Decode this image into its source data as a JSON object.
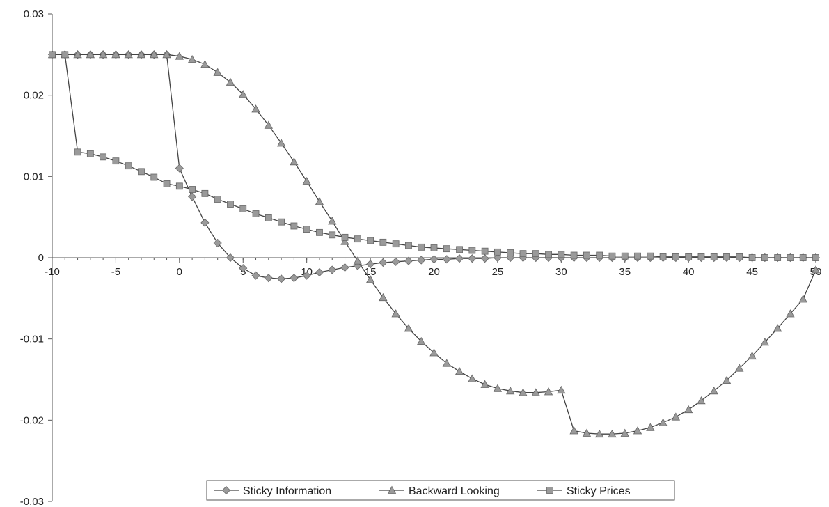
{
  "chart_data": {
    "type": "line",
    "title": "",
    "xlabel": "",
    "ylabel": "",
    "xlim": [
      -10,
      50
    ],
    "ylim": [
      -0.03,
      0.03
    ],
    "x_ticks": [
      -10,
      -5,
      0,
      5,
      10,
      15,
      20,
      25,
      30,
      35,
      40,
      45,
      50
    ],
    "x_tick_labels": [
      "-10",
      "-5",
      "0",
      "5",
      "10",
      "15",
      "20",
      "25",
      "30",
      "35",
      "40",
      "45",
      "50"
    ],
    "y_ticks": [
      0.03,
      0.02,
      0.01,
      0,
      -0.01,
      -0.02,
      -0.03
    ],
    "y_tick_labels": [
      "0.03",
      "0.02",
      "0.01",
      "0",
      "-0.01",
      "-0.02",
      "-0.03"
    ],
    "grid": false,
    "legend_position": "bottom-center",
    "colors": {
      "line": "#444444",
      "marker": "#9a9a9a",
      "axis": "#555555"
    },
    "series": [
      {
        "name": "Sticky Information",
        "marker": "diamond",
        "x": [
          -10,
          -9,
          -8,
          -7,
          -6,
          -5,
          -4,
          -3,
          -2,
          -1,
          0,
          1,
          2,
          3,
          4,
          5,
          6,
          7,
          8,
          9,
          10,
          11,
          12,
          13,
          14,
          15,
          16,
          17,
          18,
          19,
          20,
          21,
          22,
          23,
          24,
          25,
          26,
          27,
          28,
          29,
          30,
          31,
          32,
          33,
          34,
          35,
          36,
          37,
          38,
          39,
          40,
          41,
          42,
          43,
          44,
          45,
          46,
          47,
          48,
          49,
          50
        ],
        "y": [
          0.025,
          0.025,
          0.025,
          0.025,
          0.025,
          0.025,
          0.025,
          0.025,
          0.025,
          0.025,
          0.011,
          0.0075,
          0.0043,
          0.0018,
          0,
          -0.0013,
          -0.0022,
          -0.0025,
          -0.0026,
          -0.0025,
          -0.0022,
          -0.0018,
          -0.0015,
          -0.0012,
          -0.001,
          -0.0008,
          -0.0006,
          -0.0005,
          -0.0004,
          -0.0003,
          -0.0002,
          -0.0002,
          -0.0001,
          -0.0001,
          -0.0001,
          0,
          0,
          0,
          0,
          0,
          0,
          0,
          0,
          0,
          0,
          0,
          0,
          0,
          0,
          0,
          0,
          0,
          0,
          0,
          0,
          0,
          0,
          0,
          0,
          0,
          0
        ]
      },
      {
        "name": "Backward Looking",
        "marker": "triangle",
        "x": [
          -10,
          -9,
          -8,
          -7,
          -6,
          -5,
          -4,
          -3,
          -2,
          -1,
          0,
          1,
          2,
          3,
          4,
          5,
          6,
          7,
          8,
          9,
          10,
          11,
          12,
          13,
          14,
          15,
          16,
          17,
          18,
          19,
          20,
          21,
          22,
          23,
          24,
          25,
          26,
          27,
          28,
          29,
          30,
          31,
          32,
          33,
          34,
          35,
          36,
          37,
          38,
          39,
          40,
          41,
          42,
          43,
          44,
          45,
          46,
          47,
          48,
          49,
          50
        ],
        "y": [
          0.025,
          0.025,
          0.025,
          0.025,
          0.025,
          0.025,
          0.025,
          0.025,
          0.025,
          0.025,
          0.0248,
          0.0244,
          0.0238,
          0.0228,
          0.0216,
          0.0201,
          0.0183,
          0.0163,
          0.0141,
          0.0118,
          0.0094,
          0.0069,
          0.0045,
          0.002,
          -0.0004,
          -0.0027,
          -0.0049,
          -0.0069,
          -0.0087,
          -0.0103,
          -0.0117,
          -0.013,
          -0.014,
          -0.0149,
          -0.0156,
          -0.0161,
          -0.0164,
          -0.0166,
          -0.0166,
          -0.0165,
          -0.0163,
          -0.0213,
          -0.0216,
          -0.0217,
          -0.0217,
          -0.0216,
          -0.0213,
          -0.0209,
          -0.0203,
          -0.0196,
          -0.0187,
          -0.0176,
          -0.0164,
          -0.0151,
          -0.0136,
          -0.0121,
          -0.0104,
          -0.0087,
          -0.0069,
          -0.0051,
          -0.0015
        ]
      },
      {
        "name": "Sticky Prices",
        "marker": "square",
        "x": [
          -10,
          -9,
          -8,
          -7,
          -6,
          -5,
          -4,
          -3,
          -2,
          -1,
          0,
          1,
          2,
          3,
          4,
          5,
          6,
          7,
          8,
          9,
          10,
          11,
          12,
          13,
          14,
          15,
          16,
          17,
          18,
          19,
          20,
          21,
          22,
          23,
          24,
          25,
          26,
          27,
          28,
          29,
          30,
          31,
          32,
          33,
          34,
          35,
          36,
          37,
          38,
          39,
          40,
          41,
          42,
          43,
          44,
          45,
          46,
          47,
          48,
          49,
          50
        ],
        "y": [
          0.025,
          0.025,
          0.013,
          0.0128,
          0.0124,
          0.0119,
          0.0113,
          0.0106,
          0.0099,
          0.0091,
          0.0088,
          0.0084,
          0.0079,
          0.0072,
          0.0066,
          0.006,
          0.0054,
          0.0049,
          0.0044,
          0.0039,
          0.0035,
          0.0031,
          0.0028,
          0.0025,
          0.0023,
          0.0021,
          0.0019,
          0.0017,
          0.0015,
          0.0013,
          0.0012,
          0.0011,
          0.001,
          0.0009,
          0.0008,
          0.0007,
          0.0006,
          0.0005,
          0.0005,
          0.0004,
          0.0004,
          0.0003,
          0.0003,
          0.0003,
          0.0002,
          0.0002,
          0.0002,
          0.0002,
          0.0001,
          0.0001,
          0.0001,
          0.0001,
          0.0001,
          0.0001,
          0.0001,
          0,
          0,
          0,
          0,
          0,
          0
        ]
      }
    ]
  }
}
